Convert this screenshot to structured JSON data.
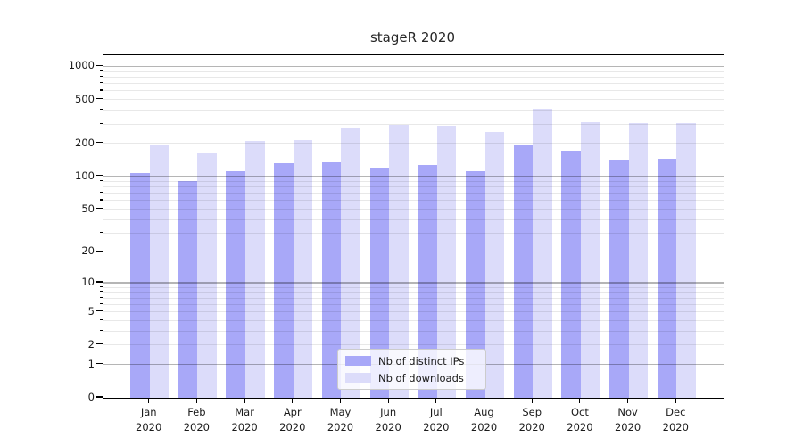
{
  "chart_data": {
    "type": "bar",
    "title": "stageR 2020",
    "categories": [
      "Jan",
      "Feb",
      "Mar",
      "Apr",
      "May",
      "Jun",
      "Jul",
      "Aug",
      "Sep",
      "Oct",
      "Nov",
      "Dec"
    ],
    "category_year": "2020",
    "series": [
      {
        "name": "Nb of distinct IPs",
        "color": "#a8a8f8",
        "values": [
          108,
          91,
          112,
          131,
          135,
          120,
          128,
          111,
          193,
          170,
          141,
          144
        ]
      },
      {
        "name": "Nb of downloads",
        "color": "#dcdcfa",
        "values": [
          190,
          162,
          211,
          216,
          272,
          293,
          289,
          255,
          415,
          313,
          307,
          304
        ]
      }
    ],
    "yscale": "log1p",
    "ylim": [
      0,
      1259
    ],
    "yticks": [
      0,
      1,
      2,
      5,
      10,
      20,
      50,
      100,
      200,
      500,
      1000
    ],
    "ygrid_major": [
      1,
      10,
      100,
      1000
    ],
    "ygrid_minor": [
      2,
      3,
      4,
      5,
      6,
      7,
      8,
      9,
      20,
      30,
      40,
      50,
      60,
      70,
      80,
      90,
      200,
      300,
      400,
      500,
      600,
      700,
      800,
      900
    ],
    "grid": true,
    "legend": {
      "position": "lower-center",
      "entries": [
        "Nb of distinct IPs",
        "Nb of downloads"
      ]
    }
  }
}
